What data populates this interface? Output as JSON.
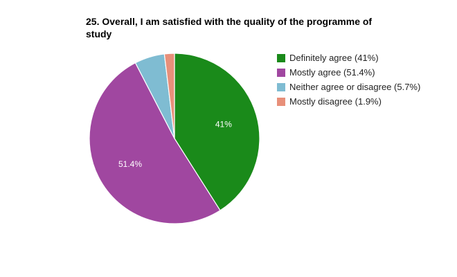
{
  "chart_data": {
    "type": "pie",
    "title": "25. Overall, I am satisfied with the quality of the programme of study",
    "start_angle_deg": 0,
    "slices": [
      {
        "name": "Definitely agree",
        "value": 41,
        "legend_label": "Definitely agree (41%)",
        "data_label": "41%",
        "color": "#1a8a1a"
      },
      {
        "name": "Mostly agree",
        "value": 51.4,
        "legend_label": "Mostly agree (51.4%)",
        "data_label": "51.4%",
        "color": "#a047a0"
      },
      {
        "name": "Neither agree or disagree",
        "value": 5.7,
        "legend_label": "Neither agree or disagree (5.7%)",
        "data_label": "",
        "color": "#7fbcd2"
      },
      {
        "name": "Mostly disagree",
        "value": 1.9,
        "legend_label": "Mostly disagree (1.9%)",
        "data_label": "",
        "color": "#e8907a"
      }
    ],
    "legend_position": "right"
  }
}
